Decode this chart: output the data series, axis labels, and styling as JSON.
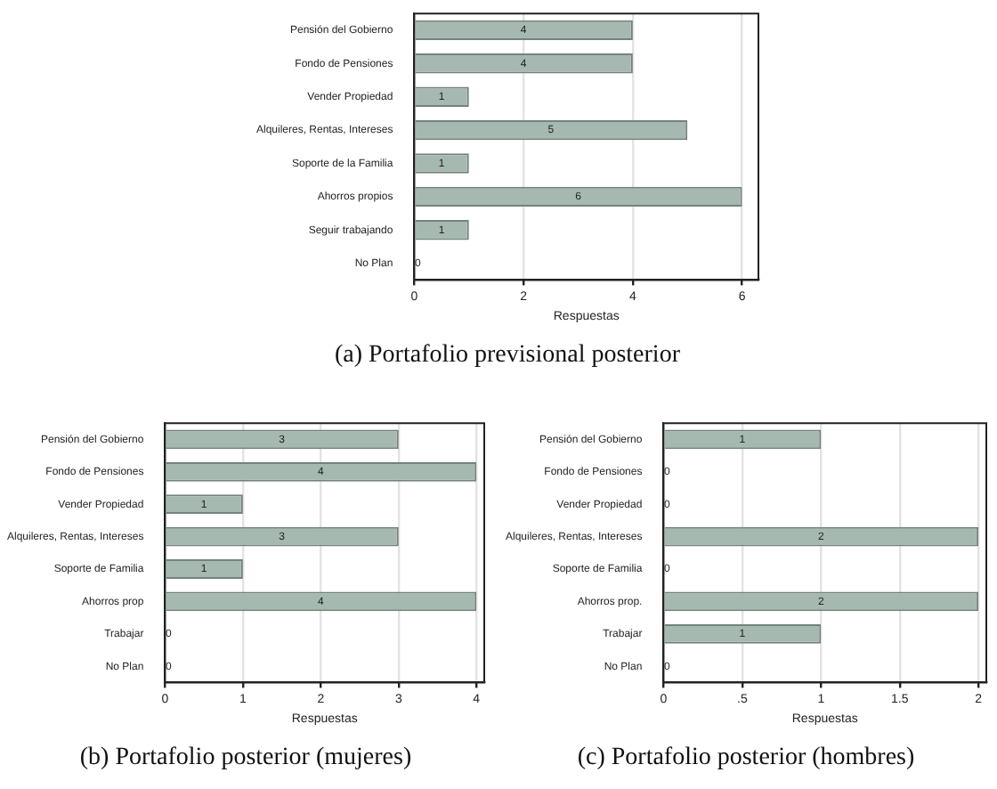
{
  "chart_data": [
    {
      "type": "bar",
      "orientation": "horizontal",
      "title": "(a) Portafolio previsional posterior",
      "xlabel": "Respuestas",
      "categories": [
        "Pensión del Gobierno",
        "Fondo de Pensiones",
        "Vender Propiedad",
        "Alquileres, Rentas, Intereses",
        "Soporte de la Familia",
        "Ahorros propios",
        "Seguir trabajando",
        "No Plan"
      ],
      "values": [
        4,
        4,
        1,
        5,
        1,
        6,
        1,
        0
      ],
      "color": "#a6b9b0",
      "xlim": [
        0,
        6.3
      ],
      "xticks": [
        0,
        2,
        4,
        6
      ],
      "grid": "x",
      "data_labels": true
    },
    {
      "type": "bar",
      "orientation": "horizontal",
      "title": "(b) Portafolio posterior (mujeres)",
      "xlabel": "Respuestas",
      "categories": [
        "Pensión del Gobierno",
        "Fondo de Pensiones",
        "Vender Propiedad",
        "Alquileres, Rentas, Intereses",
        "Soporte de Familia",
        "Ahorros prop",
        "Trabajar",
        "No Plan"
      ],
      "values": [
        3,
        4,
        1,
        3,
        1,
        4,
        0,
        0
      ],
      "color": "#a6b9b0",
      "xlim": [
        0,
        4.1
      ],
      "xticks": [
        0,
        1,
        2,
        3,
        4
      ],
      "grid": "x",
      "data_labels": true
    },
    {
      "type": "bar",
      "orientation": "horizontal",
      "title": "(c) Portafolio posterior (hombres)",
      "xlabel": "Respuestas",
      "categories": [
        "Pensión del Gobierno",
        "Fondo de Pensiones",
        "Vender Propiedad",
        "Alquileres, Rentas, Intereses",
        "Soporte de Familia",
        "Ahorros prop.",
        "Trabajar",
        "No Plan"
      ],
      "values": [
        1,
        0,
        0,
        2,
        0,
        2,
        1,
        0
      ],
      "color": "#a6b9b0",
      "xlim": [
        0,
        2.05
      ],
      "xticks": [
        0,
        {
          "value": 0.5,
          "label": ".5"
        },
        1,
        1.5,
        2
      ],
      "grid": "x",
      "data_labels": true
    }
  ]
}
